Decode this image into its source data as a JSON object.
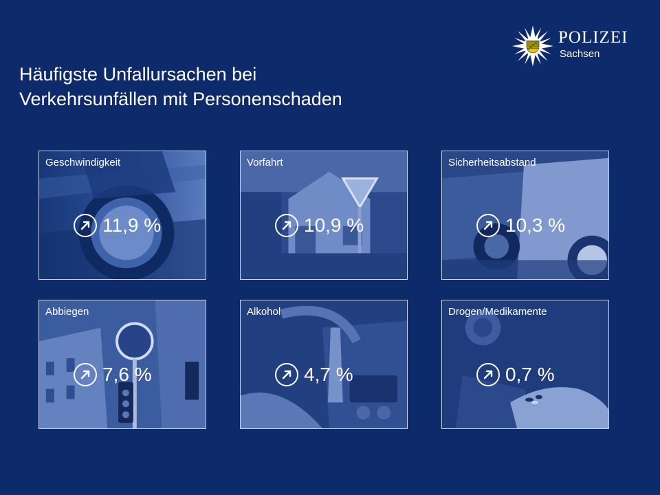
{
  "header": {
    "title_line1": "Häufigste Unfallursachen bei",
    "title_line2": "Verkehrsunfällen mit Personenschaden"
  },
  "logo": {
    "word": "POLIZEI",
    "sub": "Sachsen"
  },
  "tiles": [
    {
      "label": "Geschwindigkeit",
      "value": "11,9 %",
      "icon": "arrow-up-right-icon"
    },
    {
      "label": "Vorfahrt",
      "value": "10,9 %",
      "icon": "arrow-up-right-icon"
    },
    {
      "label": "Sicherheitsabstand",
      "value": "10,3 %",
      "icon": "arrow-up-right-icon"
    },
    {
      "label": "Abbiegen",
      "value": "7,6 %",
      "icon": "arrow-up-right-icon"
    },
    {
      "label": "Alkohol",
      "value": "4,7 %",
      "icon": "arrow-up-right-icon"
    },
    {
      "label": "Drogen/Medikamente",
      "value": "0,7 %",
      "icon": "arrow-up-right-icon"
    }
  ],
  "colors": {
    "background": "#0d2a6b",
    "tile": "#2b4a8e",
    "text": "#ffffff",
    "badge_green": "#2e8b3e",
    "badge_yellow": "#f2c200"
  }
}
